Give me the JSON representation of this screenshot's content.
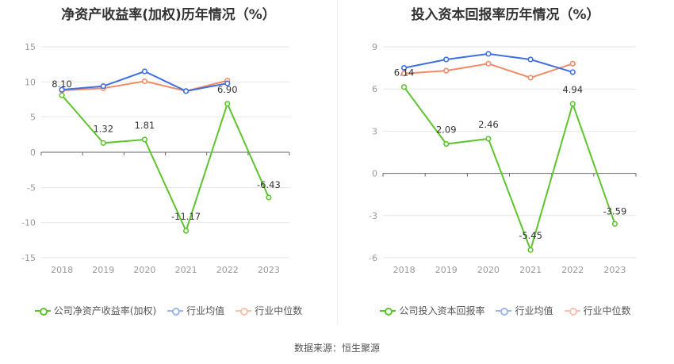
{
  "source": "数据来源：恒生聚源",
  "chart_data": [
    {
      "type": "line",
      "title": "净资产收益率(加权)历年情况（%）",
      "categories": [
        "2018",
        "2019",
        "2020",
        "2021",
        "2022",
        "2023"
      ],
      "yticks": [
        15,
        10,
        5,
        0,
        -5,
        -10,
        -15
      ],
      "ylim": [
        -15,
        15
      ],
      "grid": true,
      "legend_position": "bottom",
      "series": [
        {
          "name": "公司净资产收益率(加权)",
          "color": "#5ec42d",
          "values": [
            8.1,
            1.32,
            1.81,
            -11.17,
            6.9,
            -6.43
          ],
          "labels": [
            "8.10",
            "1.32",
            "1.81",
            "-11.17",
            "6.90",
            "-6.43"
          ]
        },
        {
          "name": "行业均值",
          "color": "#3f6fe0",
          "values": [
            8.9,
            9.4,
            11.5,
            8.7,
            9.8,
            null
          ]
        },
        {
          "name": "行业中位数",
          "color": "#f18a66",
          "values": [
            8.8,
            9.1,
            10.1,
            8.7,
            10.2,
            null
          ]
        }
      ]
    },
    {
      "type": "line",
      "title": "投入资本回报率历年情况（%）",
      "categories": [
        "2018",
        "2019",
        "2020",
        "2021",
        "2022",
        "2023"
      ],
      "yticks": [
        9,
        6,
        3,
        0,
        -3,
        -6
      ],
      "ylim": [
        -6,
        9
      ],
      "grid": true,
      "legend_position": "bottom",
      "series": [
        {
          "name": "公司投入资本回报率",
          "color": "#5ec42d",
          "values": [
            6.14,
            2.09,
            2.46,
            -5.45,
            4.94,
            -3.59
          ],
          "labels": [
            "6.14",
            "2.09",
            "2.46",
            "-5.45",
            "4.94",
            "-3.59"
          ]
        },
        {
          "name": "行业均值",
          "color": "#3f6fe0",
          "values": [
            7.5,
            8.1,
            8.5,
            8.1,
            7.2,
            null
          ]
        },
        {
          "name": "行业中位数",
          "color": "#f18a66",
          "values": [
            7.1,
            7.3,
            7.8,
            6.8,
            7.8,
            null
          ]
        }
      ]
    }
  ]
}
